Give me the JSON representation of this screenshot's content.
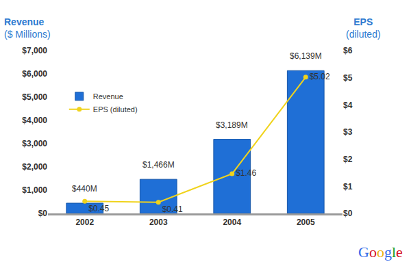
{
  "chart_data": {
    "type": "bar",
    "categories": [
      "2002",
      "2003",
      "2004",
      "2005"
    ],
    "series": [
      {
        "name": "Revenue",
        "type": "bar",
        "color": "#1f6fd6",
        "values": [
          440,
          1466,
          3189,
          6139
        ],
        "value_labels": [
          "$440M",
          "$1,466M",
          "$3,189M",
          "$6,139M"
        ]
      },
      {
        "name": "EPS (diluted)",
        "type": "line",
        "axis": "y2",
        "color": "#f0d31c",
        "marker": "circle",
        "values": [
          0.45,
          0.41,
          1.46,
          5.02
        ],
        "value_labels": [
          "$0.45",
          "$0.41",
          "$1.46",
          "$5.02"
        ]
      }
    ],
    "ylabel": [
      "Revenue",
      "($ Millions)"
    ],
    "y2label": [
      "EPS",
      "(diluted)"
    ],
    "ylim": [
      0,
      7000
    ],
    "yticks": [
      {
        "value": 0,
        "label": "$0"
      },
      {
        "value": 1000,
        "label": "$1,000"
      },
      {
        "value": 2000,
        "label": "$2,000"
      },
      {
        "value": 3000,
        "label": "$3,000"
      },
      {
        "value": 4000,
        "label": "$4,000"
      },
      {
        "value": 5000,
        "label": "$5,000"
      },
      {
        "value": 6000,
        "label": "$6,000"
      },
      {
        "value": 7000,
        "label": "$7,000"
      }
    ],
    "y2lim": [
      0,
      6
    ],
    "y2ticks": [
      {
        "value": 0,
        "label": "$0"
      },
      {
        "value": 1,
        "label": "$1"
      },
      {
        "value": 2,
        "label": "$2"
      },
      {
        "value": 3,
        "label": "$3"
      },
      {
        "value": 4,
        "label": "$4"
      },
      {
        "value": 5,
        "label": "$5"
      },
      {
        "value": 6,
        "label": "$6"
      }
    ],
    "grid": false,
    "legend": "upper left",
    "data_labels": true,
    "annotations": [
      {
        "text": "Google"
      }
    ]
  }
}
